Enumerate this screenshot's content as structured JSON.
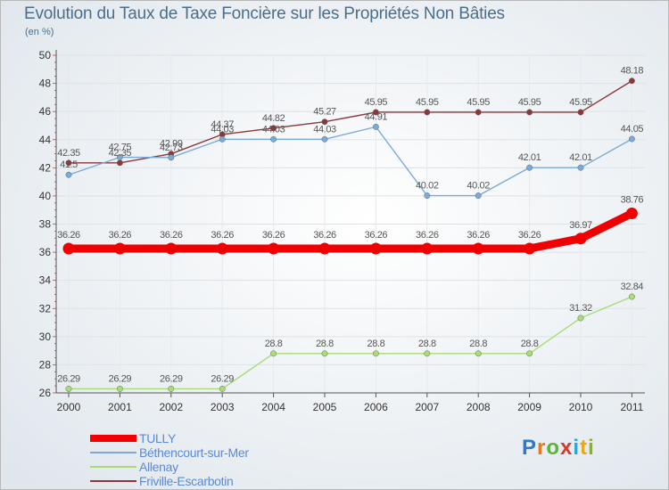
{
  "chart_data": {
    "type": "line",
    "title": "Evolution du Taux de Taxe Foncière sur les Propriétés Non Bâties",
    "subtitle": "(en %)",
    "xlabel": "",
    "ylabel": "",
    "ylim": [
      26,
      50
    ],
    "yticks": [
      "26",
      "28",
      "30",
      "32",
      "34",
      "36",
      "38",
      "40",
      "42",
      "44",
      "46",
      "48",
      "50"
    ],
    "categories": [
      "2000",
      "2001",
      "2002",
      "2003",
      "2004",
      "2005",
      "2006",
      "2007",
      "2008",
      "2009",
      "2010",
      "2011"
    ],
    "grid": true,
    "series": [
      {
        "name": "TULLY",
        "color": "#f00000",
        "values": [
          36.26,
          36.26,
          36.26,
          36.26,
          36.26,
          36.26,
          36.26,
          36.26,
          36.26,
          36.26,
          36.97,
          38.76
        ],
        "labels": [
          "36.26",
          "36.26",
          "36.26",
          "36.26",
          "36.26",
          "36.26",
          "36.26",
          "36.26",
          "36.26",
          "36.26",
          "36.97",
          "38.76"
        ]
      },
      {
        "name": "Béthencourt-sur-Mer",
        "color": "#7aaad8",
        "values": [
          41.5,
          42.75,
          42.73,
          44.03,
          44.03,
          44.03,
          44.91,
          40.02,
          40.02,
          42.01,
          42.01,
          44.05
        ],
        "labels": [
          "41.5",
          "42.75",
          "42.73",
          "44.03",
          "44.03",
          "44.03",
          "44.91",
          "40.02",
          "40.02",
          "42.01",
          "42.01",
          "44.05"
        ]
      },
      {
        "name": "Allenay",
        "color": "#a8dc78",
        "values": [
          26.29,
          26.29,
          26.29,
          26.29,
          28.8,
          28.8,
          28.8,
          28.8,
          28.8,
          28.8,
          31.32,
          32.84
        ],
        "labels": [
          "26.29",
          "26.29",
          "26.29",
          "26.29",
          "28.8",
          "28.8",
          "28.8",
          "28.8",
          "28.8",
          "28.8",
          "31.32",
          "32.84"
        ]
      },
      {
        "name": "Friville-Escarbotin",
        "color": "#8a3838",
        "values": [
          42.35,
          42.35,
          42.99,
          44.37,
          44.82,
          45.27,
          45.95,
          45.95,
          45.95,
          45.95,
          45.95,
          48.18
        ],
        "labels": [
          "42.35",
          "42.35",
          "42.99",
          "44.37",
          "44.82",
          "45.27",
          "45.95",
          "45.95",
          "45.95",
          "45.95",
          "45.95",
          "48.18"
        ]
      }
    ]
  },
  "legend": {
    "items": [
      {
        "label": "TULLY",
        "color": "#f00000"
      },
      {
        "label": "Béthencourt-sur-Mer",
        "color": "#7aaad8"
      },
      {
        "label": "Allenay",
        "color": "#a8dc78"
      },
      {
        "label": "Friville-Escarbotin",
        "color": "#8a3838"
      }
    ]
  },
  "logo": {
    "letters": [
      "P",
      "r",
      "o",
      "x",
      "i",
      "t",
      "i"
    ]
  }
}
